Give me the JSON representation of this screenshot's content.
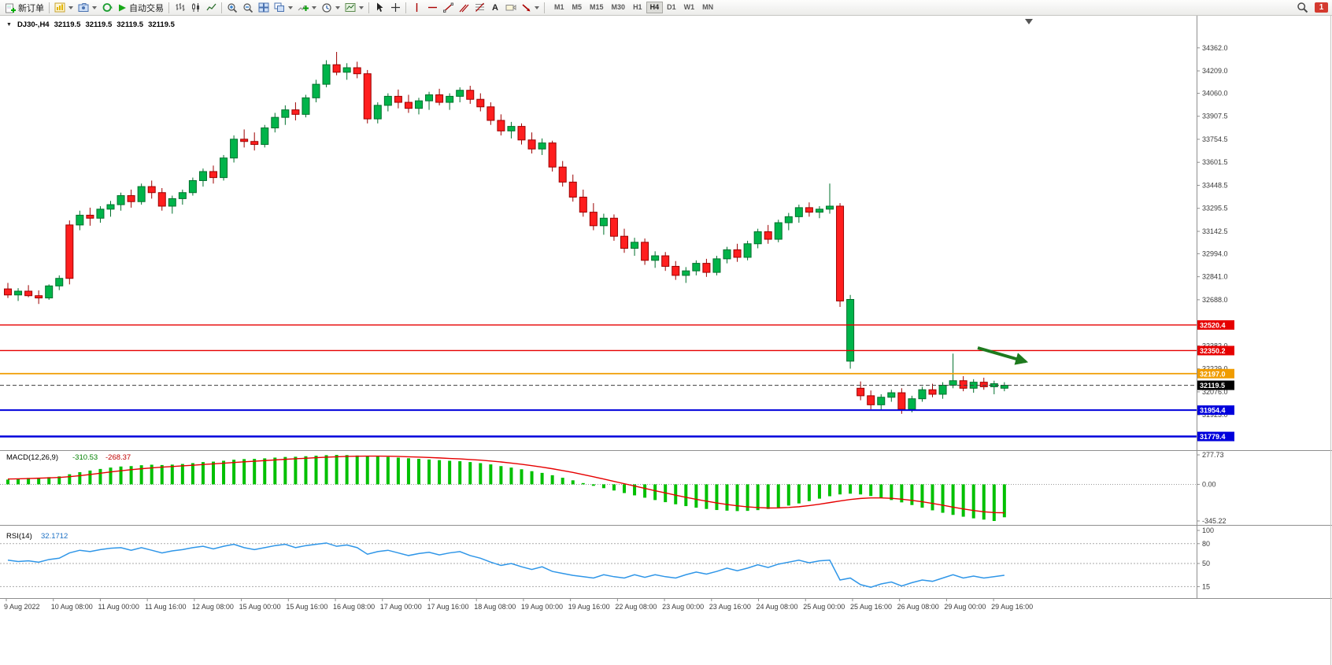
{
  "window": {
    "symbol_period": "DJ30-,H4",
    "ohlc": {
      "open": "32119.5",
      "high": "32119.5",
      "low": "32119.5",
      "close": "32119.5"
    }
  },
  "toolbar": {
    "new_order_label": "新订单",
    "autotrading_label": "自动交易",
    "text_tool_label": "A",
    "timeframes": [
      "M1",
      "M5",
      "M15",
      "M30",
      "H1",
      "H4",
      "D1",
      "W1",
      "MN"
    ],
    "active_timeframe": "H4",
    "notification_count": "1"
  },
  "price_scale": {
    "labels": [
      "34362.0",
      "34209.0",
      "34060.0",
      "33907.5",
      "33754.5",
      "33601.5",
      "33448.5",
      "33295.5",
      "33142.5",
      "32994.0",
      "32841.0",
      "32688.0",
      "32382.0",
      "32229.0",
      "32076.0",
      "31923.0"
    ]
  },
  "hlines": [
    {
      "label": "32520.4",
      "price": 32520.4,
      "color": "#e60000",
      "width": 1.4
    },
    {
      "label": "32350.2",
      "price": 32350.2,
      "color": "#e60000",
      "width": 1.4
    },
    {
      "label": "32197.0",
      "price": 32197.0,
      "color": "#f09c00",
      "width": 1.7
    },
    {
      "label": "31954.4",
      "price": 31954.4,
      "color": "#0000dc",
      "width": 2
    },
    {
      "label": "31779.4",
      "price": 31779.4,
      "color": "#0000dc",
      "width": 2.5
    }
  ],
  "current_price": {
    "label": "32119.5",
    "price": 32119.5,
    "color": "#000000"
  },
  "annotation": {
    "type": "arrow",
    "color": "#1e7a1e"
  },
  "time_axis": {
    "labels": [
      "9 Aug 2022",
      "10 Aug 08:00",
      "11 Aug 00:00",
      "11 Aug 16:00",
      "12 Aug 08:00",
      "15 Aug 00:00",
      "15 Aug 16:00",
      "16 Aug 08:00",
      "17 Aug 00:00",
      "17 Aug 16:00",
      "18 Aug 08:00",
      "19 Aug 00:00",
      "19 Aug 16:00",
      "22 Aug 08:00",
      "23 Aug 00:00",
      "23 Aug 16:00",
      "24 Aug 08:00",
      "25 Aug 00:00",
      "25 Aug 16:00",
      "26 Aug 08:00",
      "29 Aug 00:00",
      "29 Aug 16:00"
    ]
  },
  "chart_data": [
    {
      "type": "candlestick",
      "title": "DJ30- H4",
      "up_color": "#00b44a",
      "down_color": "#ff1e1e",
      "ylim": [
        31688,
        34565
      ],
      "ohlc": [
        [
          32760,
          32800,
          32700,
          32720
        ],
        [
          32720,
          32765,
          32680,
          32745
        ],
        [
          32745,
          32785,
          32705,
          32715
        ],
        [
          32715,
          32750,
          32660,
          32700
        ],
        [
          32700,
          32790,
          32688,
          32780
        ],
        [
          32780,
          32850,
          32752,
          32830
        ],
        [
          33185,
          33215,
          32790,
          32830
        ],
        [
          33185,
          33280,
          33150,
          33250
        ],
        [
          33250,
          33300,
          33180,
          33230
        ],
        [
          33230,
          33310,
          33200,
          33290
        ],
        [
          33290,
          33345,
          33240,
          33320
        ],
        [
          33320,
          33400,
          33280,
          33380
        ],
        [
          33380,
          33420,
          33300,
          33340
        ],
        [
          33340,
          33460,
          33320,
          33440
        ],
        [
          33440,
          33480,
          33360,
          33400
        ],
        [
          33400,
          33430,
          33280,
          33310
        ],
        [
          33310,
          33380,
          33260,
          33360
        ],
        [
          33360,
          33420,
          33320,
          33400
        ],
        [
          33400,
          33500,
          33380,
          33480
        ],
        [
          33480,
          33560,
          33440,
          33540
        ],
        [
          33540,
          33580,
          33460,
          33500
        ],
        [
          33500,
          33650,
          33480,
          33630
        ],
        [
          33630,
          33780,
          33600,
          33755
        ],
        [
          33755,
          33820,
          33700,
          33740
        ],
        [
          33740,
          33800,
          33680,
          33720
        ],
        [
          33720,
          33850,
          33700,
          33830
        ],
        [
          33830,
          33930,
          33800,
          33900
        ],
        [
          33900,
          33980,
          33850,
          33950
        ],
        [
          33950,
          34000,
          33880,
          33920
        ],
        [
          33920,
          34050,
          33900,
          34030
        ],
        [
          34030,
          34150,
          34000,
          34120
        ],
        [
          34120,
          34280,
          34100,
          34250
        ],
        [
          34250,
          34335,
          34180,
          34200
        ],
        [
          34200,
          34260,
          34150,
          34230
        ],
        [
          34230,
          34270,
          34160,
          34190
        ],
        [
          34190,
          34215,
          33860,
          33890
        ],
        [
          33890,
          34000,
          33860,
          33980
        ],
        [
          33980,
          34060,
          33940,
          34040
        ],
        [
          34040,
          34085,
          33960,
          34000
        ],
        [
          34000,
          34050,
          33930,
          33960
        ],
        [
          33960,
          34030,
          33920,
          34010
        ],
        [
          34010,
          34070,
          33950,
          34050
        ],
        [
          34050,
          34090,
          33980,
          34000
        ],
        [
          34000,
          34060,
          33950,
          34040
        ],
        [
          34040,
          34100,
          34000,
          34080
        ],
        [
          34080,
          34110,
          33990,
          34020
        ],
        [
          34020,
          34060,
          33940,
          33970
        ],
        [
          33970,
          34000,
          33850,
          33880
        ],
        [
          33880,
          33920,
          33780,
          33810
        ],
        [
          33810,
          33870,
          33760,
          33840
        ],
        [
          33840,
          33860,
          33720,
          33750
        ],
        [
          33750,
          33800,
          33660,
          33690
        ],
        [
          33690,
          33760,
          33650,
          33730
        ],
        [
          33730,
          33745,
          33540,
          33570
        ],
        [
          33570,
          33610,
          33440,
          33470
        ],
        [
          33470,
          33520,
          33340,
          33370
        ],
        [
          33370,
          33420,
          33240,
          33270
        ],
        [
          33270,
          33330,
          33150,
          33180
        ],
        [
          33180,
          33260,
          33120,
          33230
        ],
        [
          33230,
          33255,
          33080,
          33110
        ],
        [
          33110,
          33160,
          33000,
          33030
        ],
        [
          33030,
          33100,
          32980,
          33070
        ],
        [
          33070,
          33095,
          32920,
          32950
        ],
        [
          32950,
          33010,
          32900,
          32980
        ],
        [
          32980,
          33005,
          32880,
          32910
        ],
        [
          32910,
          32945,
          32820,
          32850
        ],
        [
          32850,
          32905,
          32800,
          32880
        ],
        [
          32880,
          32950,
          32850,
          32930
        ],
        [
          32930,
          32960,
          32840,
          32870
        ],
        [
          32870,
          32980,
          32850,
          32960
        ],
        [
          32960,
          33040,
          32930,
          33020
        ],
        [
          33020,
          33060,
          32940,
          32970
        ],
        [
          32970,
          33080,
          32950,
          33060
        ],
        [
          33060,
          33160,
          33030,
          33140
        ],
        [
          33140,
          33185,
          33060,
          33090
        ],
        [
          33090,
          33220,
          33070,
          33200
        ],
        [
          33200,
          33265,
          33150,
          33240
        ],
        [
          33240,
          33320,
          33200,
          33300
        ],
        [
          33300,
          33335,
          33240,
          33270
        ],
        [
          33270,
          33310,
          33230,
          33290
        ],
        [
          33290,
          33460,
          33260,
          33310
        ],
        [
          33310,
          33330,
          32640,
          32680
        ],
        [
          32280,
          32720,
          32230,
          32690
        ],
        [
          32100,
          32145,
          32020,
          32050
        ],
        [
          32050,
          32085,
          31960,
          31990
        ],
        [
          31990,
          32060,
          31950,
          32040
        ],
        [
          32040,
          32090,
          32010,
          32070
        ],
        [
          32070,
          32100,
          31930,
          31960
        ],
        [
          31960,
          32050,
          31940,
          32030
        ],
        [
          32030,
          32110,
          32010,
          32090
        ],
        [
          32090,
          32130,
          32040,
          32060
        ],
        [
          32060,
          32140,
          32030,
          32120
        ],
        [
          32120,
          32330,
          32100,
          32150
        ],
        [
          32150,
          32180,
          32080,
          32100
        ],
        [
          32100,
          32160,
          32070,
          32140
        ],
        [
          32140,
          32170,
          32090,
          32110
        ],
        [
          32110,
          32150,
          32060,
          32130
        ],
        [
          32100,
          32140,
          32080,
          32119.5
        ]
      ]
    },
    {
      "type": "macd-histogram",
      "label": "MACD(12,26,9)",
      "main_value": "-310.53",
      "signal_value": "-268.37",
      "scale_labels": [
        "277.73",
        "0.00",
        "-345.22"
      ],
      "ylim": [
        -345.22,
        277.73
      ],
      "hist_color": "#00c000",
      "signal_color": "#e60000",
      "hist": [
        45,
        55,
        60,
        62,
        68,
        75,
        95,
        115,
        130,
        145,
        158,
        168,
        172,
        180,
        185,
        182,
        186,
        192,
        200,
        210,
        214,
        222,
        232,
        238,
        240,
        245,
        252,
        258,
        260,
        265,
        270,
        275,
        277.73,
        276,
        272,
        268,
        262,
        258,
        252,
        246,
        240,
        234,
        228,
        222,
        218,
        210,
        200,
        188,
        172,
        158,
        142,
        124,
        108,
        86,
        62,
        38,
        12,
        -14,
        -36,
        -58,
        -82,
        -104,
        -126,
        -148,
        -168,
        -188,
        -205,
        -220,
        -232,
        -242,
        -248,
        -252,
        -250,
        -243,
        -232,
        -218,
        -200,
        -180,
        -158,
        -135,
        -112,
        -95,
        -88,
        -95,
        -110,
        -128,
        -148,
        -170,
        -195,
        -220,
        -245,
        -268,
        -288,
        -305,
        -320,
        -332,
        -345.22,
        -310.53
      ],
      "signal": [
        50,
        52,
        55,
        58,
        61,
        65,
        72,
        82,
        93,
        105,
        117,
        128,
        138,
        147,
        155,
        162,
        168,
        174,
        180,
        187,
        193,
        199,
        206,
        212,
        218,
        224,
        230,
        236,
        241,
        246,
        251,
        256,
        260,
        263,
        265,
        266,
        266,
        265,
        263,
        260,
        257,
        253,
        249,
        244,
        240,
        234,
        228,
        220,
        211,
        200,
        189,
        176,
        162,
        147,
        130,
        112,
        92,
        71,
        50,
        28,
        6,
        -16,
        -38,
        -60,
        -81,
        -102,
        -122,
        -141,
        -159,
        -175,
        -190,
        -202,
        -212,
        -219,
        -223,
        -222,
        -218,
        -211,
        -200,
        -187,
        -172,
        -157,
        -143,
        -133,
        -128,
        -128,
        -132,
        -140,
        -151,
        -164,
        -180,
        -197,
        -215,
        -232,
        -247,
        -259,
        -266,
        -268.37
      ]
    },
    {
      "type": "line",
      "label": "RSI(14)",
      "value": "32.1712",
      "scale_labels": [
        "100",
        "80",
        "50",
        "15"
      ],
      "levels": [
        80,
        50,
        15
      ],
      "ylim": [
        0,
        100
      ],
      "color": "#2f96e8",
      "values": [
        55,
        53,
        54,
        52,
        56,
        58,
        66,
        70,
        68,
        71,
        73,
        74,
        70,
        74,
        70,
        66,
        69,
        71,
        74,
        76,
        72,
        76,
        79,
        74,
        71,
        74,
        77,
        79,
        74,
        77,
        79,
        81,
        76,
        78,
        74,
        64,
        68,
        70,
        66,
        62,
        65,
        67,
        63,
        66,
        68,
        62,
        58,
        52,
        47,
        50,
        45,
        41,
        45,
        38,
        35,
        32,
        30,
        28,
        33,
        30,
        28,
        33,
        29,
        33,
        30,
        28,
        33,
        37,
        34,
        38,
        43,
        39,
        43,
        48,
        44,
        49,
        52,
        55,
        51,
        54,
        55,
        25,
        28,
        18,
        14,
        19,
        22,
        16,
        21,
        25,
        23,
        28,
        33,
        28,
        31,
        28,
        30,
        32.17
      ]
    }
  ]
}
